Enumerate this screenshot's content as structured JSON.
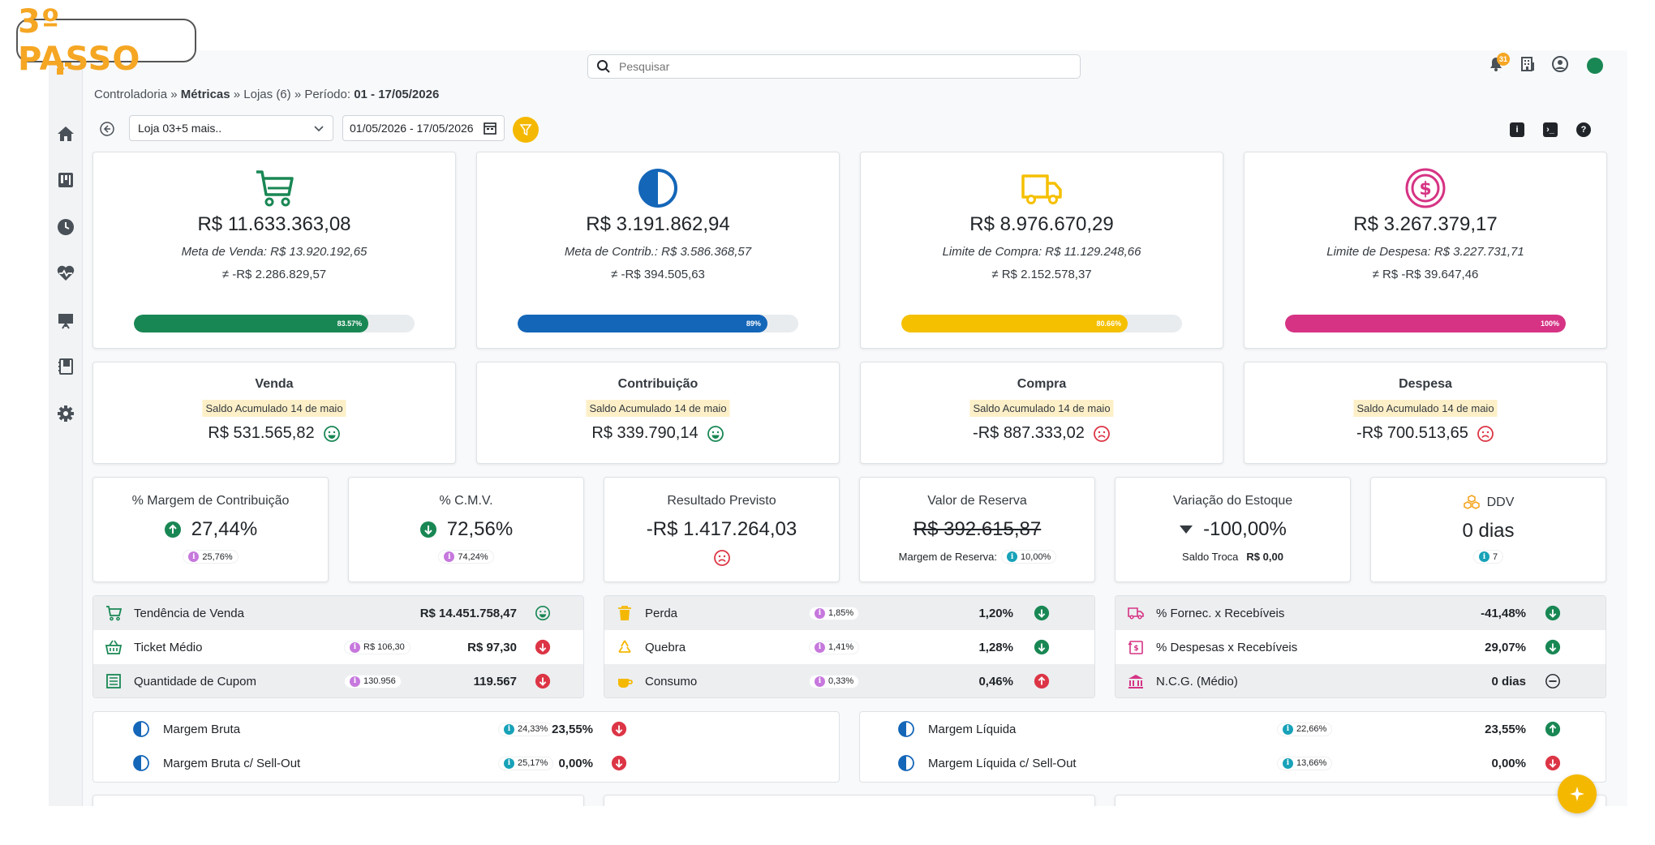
{
  "step_badge": "3º PASSO",
  "search": {
    "placeholder": "Pesquisar"
  },
  "notifications": {
    "count": "31"
  },
  "breadcrumb": {
    "part1": "Controladoria » ",
    "part2": "Métricas",
    "part3": " » Lojas (6) » Período: ",
    "part4": "01 - 17/05/2026"
  },
  "filters": {
    "store": "Loja 03+5 mais..",
    "date_range": "01/05/2026 - 17/05/2026"
  },
  "kpis": [
    {
      "value": "R$ 11.633.363,08",
      "meta": "Meta de Venda: R$ 13.920.192,65",
      "diff": "≠ -R$ 2.286.829,57",
      "progress_label": "83.57%",
      "progress": 0.8357,
      "color": "#198754",
      "icon": "cart-icon"
    },
    {
      "value": "R$ 3.191.862,94",
      "meta": "Meta de Contrib.: R$ 3.586.368,57",
      "diff": "≠ -R$ 394.505,63",
      "progress_label": "89%",
      "progress": 0.89,
      "color": "#1466b8",
      "icon": "half-circle-icon"
    },
    {
      "value": "R$ 8.976.670,29",
      "meta": "Limite de Compra: R$ 11.129.248,66",
      "diff": "≠ R$ 2.152.578,37",
      "progress_label": "80.66%",
      "progress": 0.8066,
      "color": "#f5c000",
      "icon": "truck-icon"
    },
    {
      "value": "R$ 3.267.379,17",
      "meta": "Limite de Despesa: R$ 3.227.731,71",
      "diff": "≠ R$ -R$ 39.647,46",
      "progress_label": "100%",
      "progress": 1.0,
      "color": "#d63384",
      "icon": "dollar-circle-icon"
    }
  ],
  "balances": [
    {
      "title": "Venda",
      "chip": "Saldo Acumulado 14 de maio",
      "value": "R$ 531.565,82",
      "mood": "smile"
    },
    {
      "title": "Contribuição",
      "chip": "Saldo Acumulado 14 de maio",
      "value": "R$ 339.790,14",
      "mood": "smile"
    },
    {
      "title": "Compra",
      "chip": "Saldo Acumulado 14 de maio",
      "value": "-R$ 887.333,02",
      "mood": "sad"
    },
    {
      "title": "Despesa",
      "chip": "Saldo Acumulado 14 de maio",
      "value": "-R$ 700.513,65",
      "mood": "sad"
    }
  ],
  "metrics": {
    "margem": {
      "title": "% Margem de Contribuição",
      "value": "27,44%",
      "sub": "25,76%"
    },
    "cmv": {
      "title": "% C.M.V.",
      "value": "72,56%",
      "sub": "74,24%"
    },
    "resultado": {
      "title": "Resultado Previsto",
      "value": "-R$ 1.417.264,03"
    },
    "reserva": {
      "title": "Valor de Reserva",
      "value": "R$ 392.615,87",
      "sub_label": "Margem de Reserva:",
      "sub": "10,00%"
    },
    "estoque": {
      "title": "Variação do Estoque",
      "value": "-100,00%",
      "sub_label": "Saldo Troca",
      "sub_value": "R$ 0,00"
    },
    "ddv": {
      "title": "DDV",
      "value": "0 dias",
      "sub": "7"
    }
  },
  "list_sales": [
    {
      "label": "Tendência de Venda",
      "pill": "",
      "value": "R$ 14.451.758,47",
      "ind": "smile"
    },
    {
      "label": "Ticket Médio",
      "pill": "R$ 106,30",
      "value": "R$ 97,30",
      "ind": "down-red"
    },
    {
      "label": "Quantidade de Cupom",
      "pill": "130.956",
      "value": "119.567",
      "ind": "down-red"
    }
  ],
  "list_losses": [
    {
      "label": "Perda",
      "pill": "1,85%",
      "value": "1,20%",
      "ind": "down-green"
    },
    {
      "label": "Quebra",
      "pill": "1,41%",
      "value": "1,28%",
      "ind": "down-green"
    },
    {
      "label": "Consumo",
      "pill": "0,33%",
      "value": "0,46%",
      "ind": "up-red"
    }
  ],
  "list_finance": [
    {
      "label": "% Fornec. x Recebíveis",
      "value": "-41,48%",
      "ind": "down-green"
    },
    {
      "label": "% Despesas x Recebíveis",
      "value": "29,07%",
      "ind": "down-green"
    },
    {
      "label": "N.C.G. (Médio)",
      "value": "0 dias",
      "ind": "minus"
    }
  ],
  "list_gross": [
    {
      "label": "Margem Bruta",
      "pill": "24,33%",
      "value": "23,55%",
      "ind": "down-red"
    },
    {
      "label": "Margem Bruta c/ Sell-Out",
      "pill": "25,17%",
      "value": "0,00%",
      "ind": "down-red"
    }
  ],
  "list_net": [
    {
      "label": "Margem Líquida",
      "pill": "22,66%",
      "value": "23,55%",
      "ind": "up-green"
    },
    {
      "label": "Margem Líquida c/ Sell-Out",
      "pill": "13,66%",
      "value": "0,00%",
      "ind": "down-red"
    }
  ],
  "colors": {
    "accent": "#f5b800",
    "green": "#198754",
    "red": "#dc3545",
    "blue": "#1466b8",
    "pink": "#d63384",
    "purple": "#c678dd",
    "cyan": "#17a2b8"
  }
}
